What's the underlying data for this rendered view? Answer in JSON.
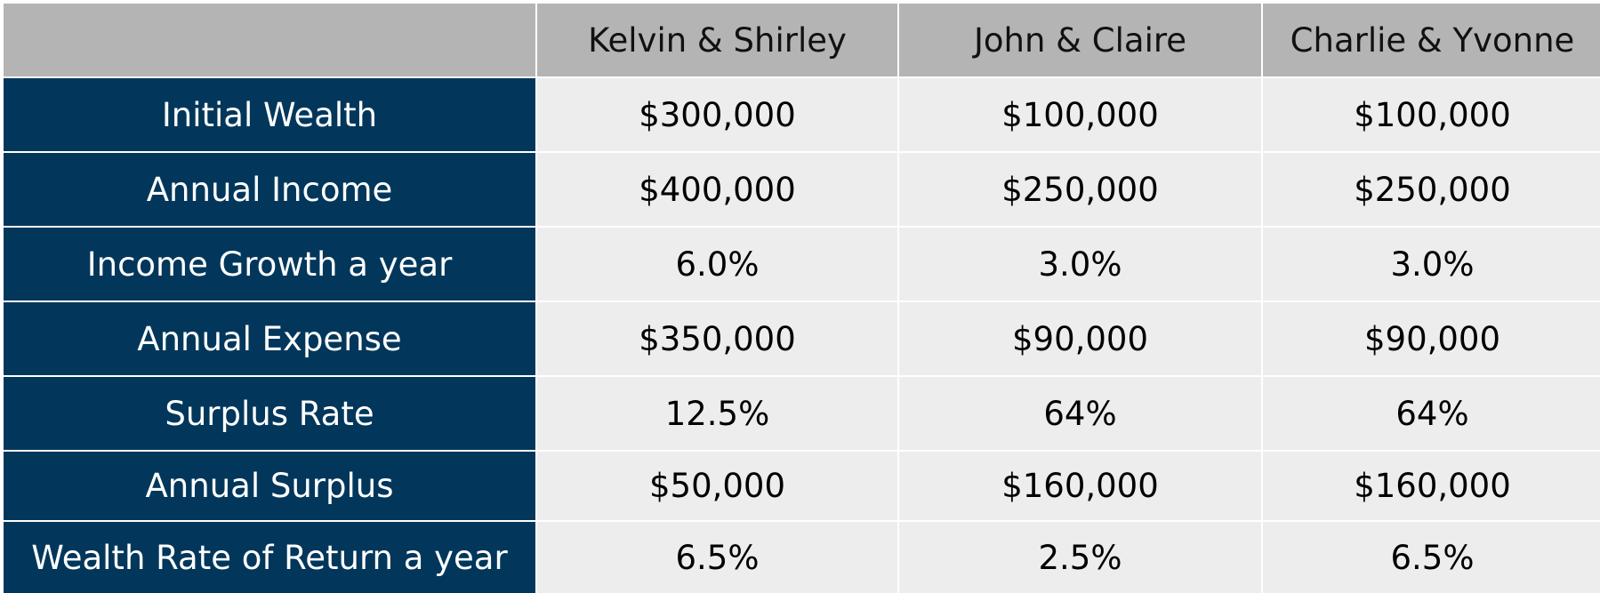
{
  "table": {
    "columns": [
      "",
      "Kelvin & Shirley",
      "John & Claire",
      "Charlie & Yvonne"
    ],
    "rows": [
      {
        "label": "Initial Wealth",
        "values": [
          "$300,000",
          "$100,000",
          "$100,000"
        ]
      },
      {
        "label": "Annual Income",
        "values": [
          "$400,000",
          "$250,000",
          "$250,000"
        ]
      },
      {
        "label": "Income Growth a year",
        "values": [
          "6.0%",
          "3.0%",
          "3.0%"
        ]
      },
      {
        "label": "Annual Expense",
        "values": [
          "$350,000",
          "$90,000",
          "$90,000"
        ]
      },
      {
        "label": "Surplus Rate",
        "values": [
          "12.5%",
          "64%",
          "64%"
        ]
      },
      {
        "label": "Annual Surplus",
        "values": [
          "$50,000",
          "$160,000",
          "$160,000"
        ]
      },
      {
        "label": "Wealth Rate of Return a year",
        "values": [
          "6.5%",
          "2.5%",
          "6.5%"
        ]
      }
    ]
  },
  "colors": {
    "header_bg": "#b4b4b4",
    "label_bg": "#02375b",
    "label_text": "#ffffff",
    "value_bg": "#ededed"
  }
}
